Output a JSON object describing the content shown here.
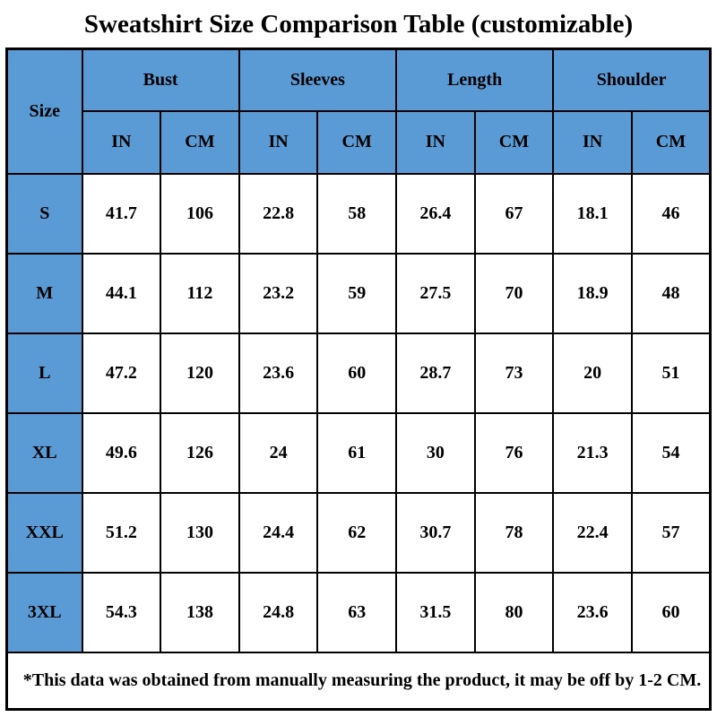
{
  "title": "Sweatshirt Size Comparison Table (customizable)",
  "colors": {
    "header_blue": "#5B9BD5",
    "border": "#000000",
    "cell_bg": "#FFFFFF",
    "text": "#000000"
  },
  "table": {
    "size_header": "Size",
    "groups": [
      {
        "label": "Bust"
      },
      {
        "label": "Sleeves"
      },
      {
        "label": "Length"
      },
      {
        "label": "Shoulder"
      }
    ],
    "units": {
      "in": "IN",
      "cm": "CM"
    },
    "rows": [
      {
        "size": "S",
        "values": [
          "41.7",
          "106",
          "22.8",
          "58",
          "26.4",
          "67",
          "18.1",
          "46"
        ]
      },
      {
        "size": "M",
        "values": [
          "44.1",
          "112",
          "23.2",
          "59",
          "27.5",
          "70",
          "18.9",
          "48"
        ]
      },
      {
        "size": "L",
        "values": [
          "47.2",
          "120",
          "23.6",
          "60",
          "28.7",
          "73",
          "20",
          "51"
        ]
      },
      {
        "size": "XL",
        "values": [
          "49.6",
          "126",
          "24",
          "61",
          "30",
          "76",
          "21.3",
          "54"
        ]
      },
      {
        "size": "XXL",
        "values": [
          "51.2",
          "130",
          "24.4",
          "62",
          "30.7",
          "78",
          "22.4",
          "57"
        ]
      },
      {
        "size": "3XL",
        "values": [
          "54.3",
          "138",
          "24.8",
          "63",
          "31.5",
          "80",
          "23.6",
          "60"
        ]
      }
    ],
    "footnote": "*This data was obtained from manually measuring the product, it may be off by 1-2 CM."
  },
  "chart_data": {
    "type": "table",
    "title": "Sweatshirt Size Comparison Table (customizable)",
    "columns": [
      "Size",
      "Bust IN",
      "Bust CM",
      "Sleeves IN",
      "Sleeves CM",
      "Length IN",
      "Length CM",
      "Shoulder IN",
      "Shoulder CM"
    ],
    "rows": [
      [
        "S",
        41.7,
        106,
        22.8,
        58,
        26.4,
        67,
        18.1,
        46
      ],
      [
        "M",
        44.1,
        112,
        23.2,
        59,
        27.5,
        70,
        18.9,
        48
      ],
      [
        "L",
        47.2,
        120,
        23.6,
        60,
        28.7,
        73,
        20,
        51
      ],
      [
        "XL",
        49.6,
        126,
        24,
        61,
        30,
        76,
        21.3,
        54
      ],
      [
        "XXL",
        51.2,
        130,
        24.4,
        62,
        30.7,
        78,
        22.4,
        57
      ],
      [
        "3XL",
        54.3,
        138,
        24.8,
        63,
        31.5,
        80,
        23.6,
        60
      ]
    ],
    "footnote": "*This data was obtained from manually measuring the product, it may be off by 1-2 CM."
  }
}
